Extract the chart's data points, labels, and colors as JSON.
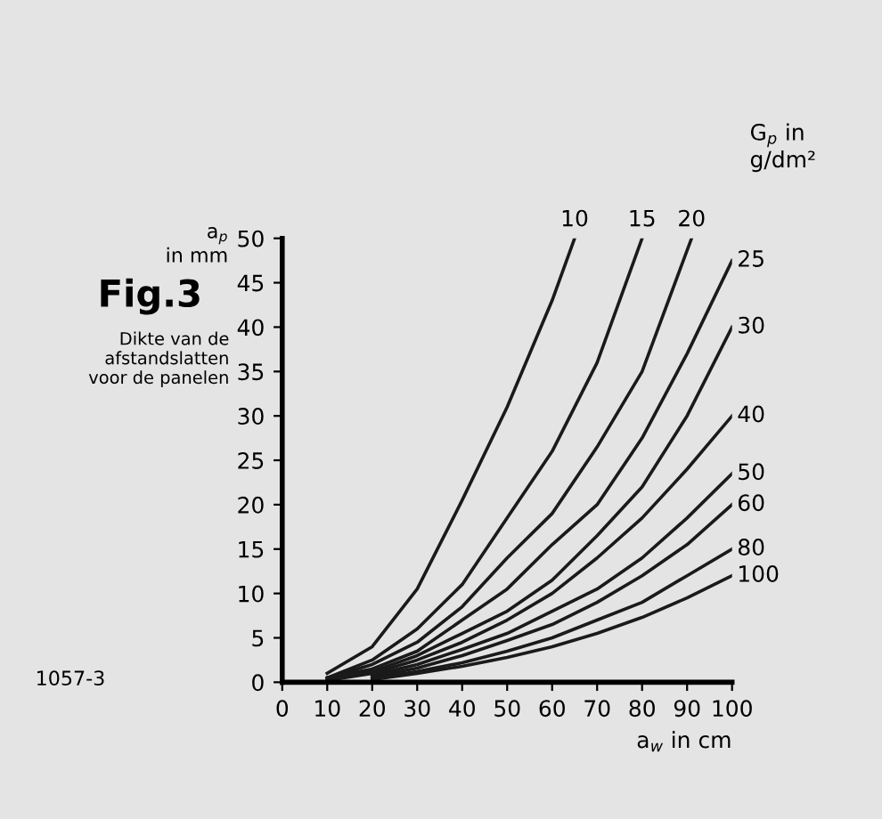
{
  "chart_data": {
    "type": "line",
    "title": "Fig.3",
    "subtitle": "Dikte van de\nafstandslatten\nvoor de panelen",
    "xlabel": "a$_{w}$ in cm",
    "ylabel": "a$_{p}$\nin mm",
    "legend_title": "G$_{p}$ in\ng/dm²",
    "annotations": [
      "1057-3"
    ],
    "xlim": [
      0,
      100
    ],
    "ylim": [
      0,
      50
    ],
    "xticks": [
      0,
      10,
      20,
      30,
      40,
      50,
      60,
      70,
      80,
      90,
      100
    ],
    "yticks": [
      0,
      5,
      10,
      15,
      20,
      25,
      30,
      35,
      40,
      45,
      50
    ],
    "grid": false,
    "legend": false,
    "marker": "none",
    "line_style": "solid",
    "series": [
      {
        "name": "10",
        "color": "#1a1a1a",
        "x": [
          10,
          20,
          30,
          40,
          50,
          60,
          65
        ],
        "values": [
          1,
          4,
          10.5,
          20.5,
          31,
          43,
          50
        ]
      },
      {
        "name": "15",
        "color": "#1a1a1a",
        "x": [
          10,
          20,
          30,
          40,
          50,
          60,
          70,
          80
        ],
        "values": [
          0.5,
          2.5,
          6,
          11,
          18.5,
          26,
          36,
          50
        ]
      },
      {
        "name": "20",
        "color": "#1a1a1a",
        "x": [
          10,
          20,
          30,
          40,
          50,
          60,
          70,
          80,
          91
        ],
        "values": [
          0.5,
          2,
          4.5,
          8.5,
          14,
          19,
          26.5,
          35,
          50
        ]
      },
      {
        "name": "25",
        "color": "#1a1a1a",
        "x": [
          10,
          20,
          30,
          40,
          50,
          60,
          70,
          80,
          90,
          100
        ],
        "values": [
          0.5,
          1.5,
          3.5,
          7,
          10.5,
          15.5,
          20,
          27.5,
          37,
          47.5
        ]
      },
      {
        "name": "30",
        "color": "#1a1a1a",
        "x": [
          10,
          20,
          30,
          40,
          50,
          60,
          70,
          80,
          90,
          100
        ],
        "values": [
          0.3,
          1.2,
          3,
          5.5,
          8,
          11.5,
          16.5,
          22,
          30,
          40
        ]
      },
      {
        "name": "40",
        "color": "#1a1a1a",
        "x": [
          10,
          20,
          30,
          40,
          50,
          60,
          70,
          80,
          90,
          100
        ],
        "values": [
          0.2,
          1,
          2.5,
          4.5,
          7,
          10,
          14,
          18.5,
          24,
          30
        ]
      },
      {
        "name": "50",
        "color": "#1a1a1a",
        "x": [
          20,
          30,
          40,
          50,
          60,
          70,
          80,
          90,
          100
        ],
        "values": [
          0.8,
          2,
          3.7,
          5.5,
          8,
          10.5,
          14,
          18.5,
          23.5
        ]
      },
      {
        "name": "60",
        "color": "#1a1a1a",
        "x": [
          20,
          30,
          40,
          50,
          60,
          70,
          80,
          90,
          100
        ],
        "values": [
          0.6,
          1.6,
          3,
          4.7,
          6.5,
          9,
          12,
          15.5,
          20
        ]
      },
      {
        "name": "80",
        "color": "#1a1a1a",
        "x": [
          20,
          30,
          40,
          50,
          60,
          70,
          80,
          90,
          100
        ],
        "values": [
          0.4,
          1.2,
          2.2,
          3.5,
          5,
          7,
          9,
          12,
          15
        ]
      },
      {
        "name": "100",
        "color": "#1a1a1a",
        "x": [
          20,
          30,
          40,
          50,
          60,
          70,
          80,
          90,
          100
        ],
        "values": [
          0.3,
          1,
          1.8,
          2.8,
          4,
          5.5,
          7.3,
          9.5,
          12
        ]
      }
    ]
  }
}
